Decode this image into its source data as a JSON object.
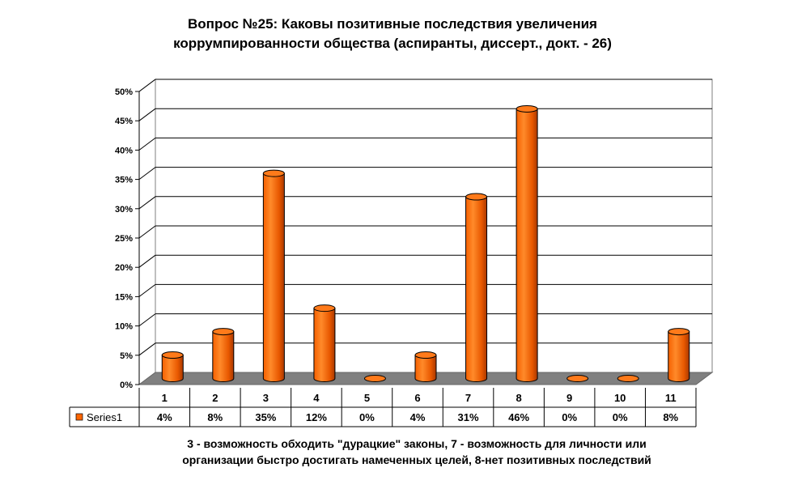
{
  "chart_data": {
    "type": "bar",
    "title": [
      "Вопрос №25: Каковы позитивные последствия увеличения",
      "коррумпированности общества (аспиранты, диссерт., докт. - 26)"
    ],
    "categories": [
      "1",
      "2",
      "3",
      "4",
      "5",
      "6",
      "7",
      "8",
      "9",
      "10",
      "11"
    ],
    "series": [
      {
        "name": "Series1",
        "values": [
          4,
          8,
          35,
          12,
          0,
          4,
          31,
          46,
          0,
          0,
          8
        ],
        "value_labels": [
          "4%",
          "8%",
          "35%",
          "12%",
          "0%",
          "4%",
          "31%",
          "46%",
          "0%",
          "0%",
          "8%"
        ],
        "color": "#FF6600"
      }
    ],
    "ylim": [
      0,
      50
    ],
    "yticks": [
      "0%",
      "5%",
      "10%",
      "15%",
      "20%",
      "25%",
      "30%",
      "35%",
      "40%",
      "45%",
      "50%"
    ],
    "grid": true,
    "legend": "data-table-left",
    "note": [
      "3 - возможность обходить \"дурацкие\" законы, 7 - возможность для личности или",
      "организации быстро достигать намеченных целей, 8-нет позитивных последствий"
    ]
  }
}
